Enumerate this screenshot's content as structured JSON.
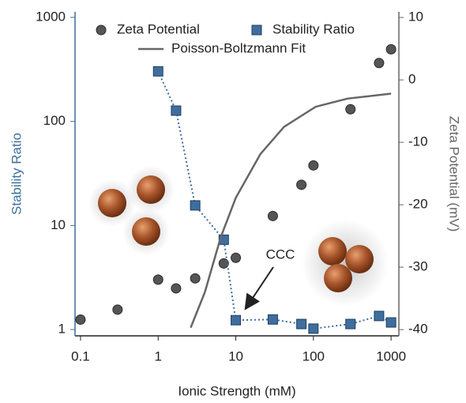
{
  "chart_data": {
    "type": "line",
    "xlabel": "Ionic Strength (mM)",
    "ylabel": "Stability Ratio",
    "y2label": "Zeta Potential (mV)",
    "annotation": "CCC",
    "xscale": "log",
    "yscale": "log",
    "xlim": [
      0.085,
      1260
    ],
    "xticks": [
      0.1,
      1,
      10,
      100,
      1000
    ],
    "ylim": [
      0.87,
      1130
    ],
    "yticks": [
      1,
      10,
      100,
      1000
    ],
    "y2lim": [
      -41,
      10.9
    ],
    "y2ticks": [
      10,
      0,
      -10,
      -20,
      -30,
      -40
    ],
    "y_color": "#3d6f9c",
    "y2_color": "#666666",
    "series": [
      {
        "name": "Zeta Potential",
        "axis": "y2",
        "marker": "circle",
        "line": false,
        "color": "#555555",
        "x": [
          0.1,
          0.3,
          1,
          1.7,
          3,
          7,
          10,
          30,
          70,
          100,
          300,
          700,
          1000
        ],
        "values": [
          -38.4,
          -36.8,
          -32,
          -33.4,
          -31.8,
          -29.4,
          -28.5,
          -21.8,
          -16.8,
          -13.7,
          -4.7,
          2.7,
          4.9
        ]
      },
      {
        "name": "Stability Ratio",
        "axis": "y",
        "marker": "square",
        "line": "dotted",
        "color": "#3f6e9e",
        "x": [
          1,
          1.7,
          3,
          7,
          10,
          30,
          70,
          100,
          300,
          700,
          1000
        ],
        "values": [
          303,
          127,
          15.6,
          7.3,
          1.23,
          1.25,
          1.13,
          1.02,
          1.13,
          1.35,
          1.17
        ]
      },
      {
        "name": "Poisson-Boltzmann Fit",
        "axis": "y2",
        "marker": "none",
        "line": "solid",
        "color": "#666666",
        "x": [
          2.62,
          4,
          6.4,
          10,
          20.7,
          41.9,
          107,
          274,
          1000
        ],
        "values": [
          -39.7,
          -34,
          -25.2,
          -18.9,
          -11.9,
          -7.5,
          -4.3,
          -3,
          -2.2
        ]
      }
    ]
  }
}
